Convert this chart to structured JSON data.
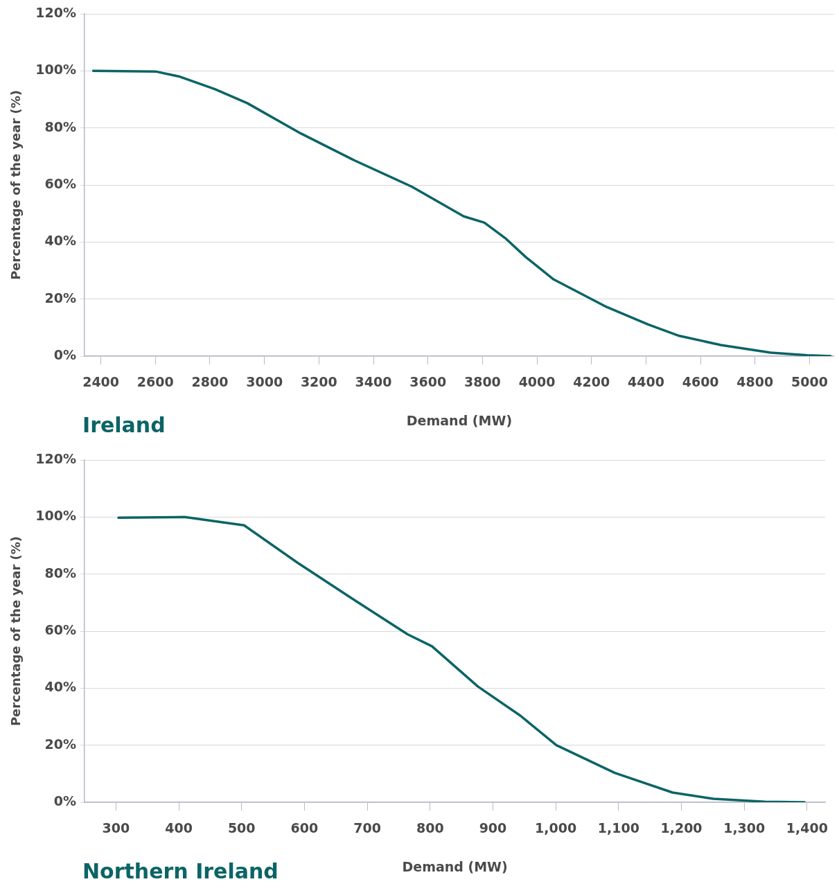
{
  "chart_data": [
    {
      "type": "line",
      "title": "Ireland",
      "xlabel": "Demand (MW)",
      "ylabel": "Percentage of the year (%)",
      "series": [
        {
          "color": "#0b6466",
          "x": [
            2372,
            2600,
            2689,
            2818,
            2937,
            3135,
            3333,
            3541,
            3731,
            3807,
            3883,
            3959,
            4061,
            4256,
            4408,
            4522,
            4674,
            4857,
            4991,
            5077
          ],
          "values": [
            100,
            99.8,
            98,
            93.6,
            88.7,
            78,
            68.5,
            59.4,
            49,
            46.8,
            41.4,
            34.7,
            26.9,
            17.2,
            11.1,
            7.1,
            3.9,
            1.2,
            0.3,
            0
          ]
        }
      ],
      "xlim": [
        2340,
        5090
      ],
      "xticks": [
        2400,
        2600,
        2800,
        3000,
        3200,
        3400,
        3600,
        3800,
        4000,
        4200,
        4400,
        4600,
        4800,
        5000
      ],
      "ylim": [
        0,
        120
      ],
      "yticks": [
        {
          "value": 0,
          "label": "0%"
        },
        {
          "value": 20,
          "label": "20%"
        },
        {
          "value": 40,
          "label": "40%"
        },
        {
          "value": 60,
          "label": "60%"
        },
        {
          "value": 80,
          "label": "80%"
        },
        {
          "value": 100,
          "label": "100%"
        },
        {
          "value": 120,
          "label": "120%"
        }
      ],
      "grid": "y",
      "legend": false,
      "marker": "none",
      "line_style": "solid"
    },
    {
      "type": "line",
      "title": "Northern Ireland",
      "xlabel": "Demand (MW)",
      "ylabel": "Percentage of the year (%)",
      "series": [
        {
          "color": "#0b6466",
          "x": [
            304,
            409,
            504,
            589,
            681,
            764,
            803,
            876,
            944,
            1001,
            1094,
            1186,
            1251,
            1333,
            1396
          ],
          "values": [
            99.8,
            100,
            97.1,
            84,
            70.7,
            58.9,
            54.7,
            40.6,
            30.3,
            20,
            10.3,
            3.4,
            1.2,
            0.2,
            0
          ]
        }
      ],
      "xlim": [
        250,
        1429
      ],
      "xticks": [
        300,
        400,
        500,
        600,
        700,
        800,
        900,
        {
          "value": 1000,
          "label": "1,000"
        },
        {
          "value": 1100,
          "label": "1,100"
        },
        {
          "value": 1200,
          "label": "1,200"
        },
        {
          "value": 1300,
          "label": "1,300"
        },
        {
          "value": 1400,
          "label": "1,400"
        }
      ],
      "ylim": [
        0,
        120
      ],
      "yticks": [
        {
          "value": 0,
          "label": "0%"
        },
        {
          "value": 20,
          "label": "20%"
        },
        {
          "value": 40,
          "label": "40%"
        },
        {
          "value": 60,
          "label": "60%"
        },
        {
          "value": 80,
          "label": "80%"
        },
        {
          "value": 100,
          "label": "100%"
        },
        {
          "value": 120,
          "label": "120%"
        }
      ],
      "grid": "y",
      "legend": false,
      "marker": "none",
      "line_style": "solid"
    }
  ]
}
